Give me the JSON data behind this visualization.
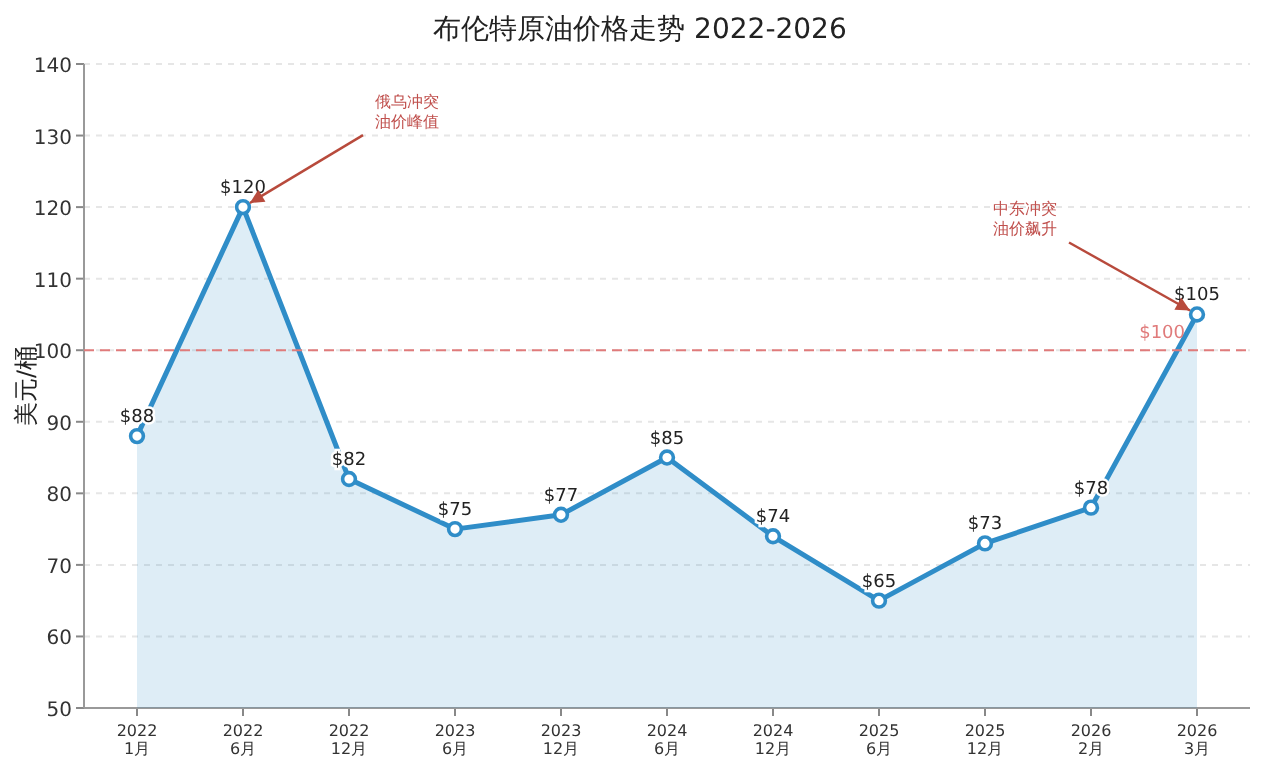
{
  "chart_data": {
    "type": "area",
    "title": "布伦特原油价格走势 2022-2026",
    "ylabel": "美元/桶",
    "categories": [
      "2022\n1月",
      "2022\n6月",
      "2022\n12月",
      "2023\n6月",
      "2023\n12月",
      "2024\n6月",
      "2024\n12月",
      "2025\n6月",
      "2025\n12月",
      "2026\n2月",
      "2026\n3月"
    ],
    "series": [
      {
        "color": "#2f8dc8",
        "values": [
          88,
          120,
          82,
          75,
          77,
          85,
          74,
          65,
          73,
          78,
          105
        ],
        "value_labels": [
          "$88",
          "$120",
          "$82",
          "$75",
          "$77",
          "$85",
          "$74",
          "$65",
          "$73",
          "$78",
          "$105"
        ]
      }
    ],
    "ylim": [
      50,
      140
    ],
    "yticks": [
      50,
      60,
      70,
      80,
      90,
      100,
      110,
      120,
      130,
      140
    ],
    "grid": "y",
    "marker": "circle",
    "line_style": "solid",
    "ref_lines": [
      {
        "axis": "y",
        "value": 100,
        "label": "$100",
        "color": "#e07b7b",
        "line_style": "dashed"
      }
    ],
    "annotations": [
      {
        "text": "俄乌冲突油价峰值",
        "x": "2022\n6月",
        "y": 120
      },
      {
        "text": "中东冲突油价飙升",
        "x": "2026\n3月",
        "y": 105
      }
    ]
  }
}
